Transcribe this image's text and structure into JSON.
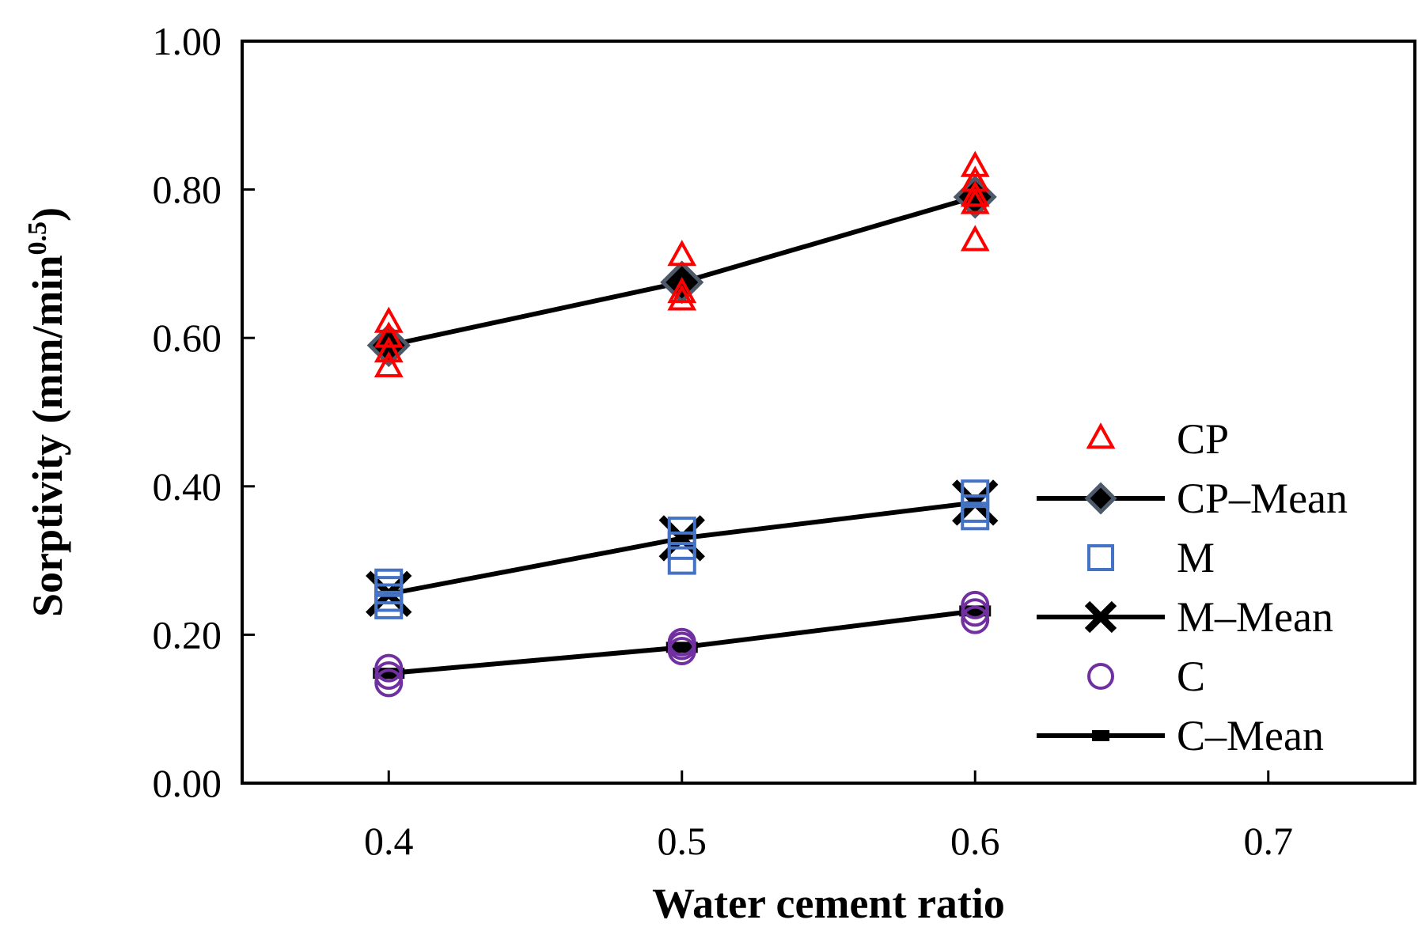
{
  "chart_data": {
    "type": "scatter",
    "title": "",
    "xlabel": "Water cement ratio",
    "ylabel_main": "Sorptivity (mm/min",
    "ylabel_sup": "0.5",
    "ylabel_close": ")",
    "xlim": [
      0.35,
      0.75
    ],
    "ylim": [
      0.0,
      1.0
    ],
    "xticks": [
      0.4,
      0.5,
      0.6,
      0.7
    ],
    "xtick_labels": [
      "0.4",
      "0.5",
      "0.6",
      "0.7"
    ],
    "yticks": [
      0.0,
      0.2,
      0.4,
      0.6,
      0.8,
      1.0
    ],
    "ytick_labels": [
      "0.00",
      "0.20",
      "0.40",
      "0.60",
      "0.80",
      "1.00"
    ],
    "grid": false,
    "legend_position": "right",
    "series": [
      {
        "name": "CP",
        "kind": "points",
        "marker": "triangle",
        "color": "#ff0000",
        "points": [
          [
            0.4,
            0.62
          ],
          [
            0.4,
            0.6
          ],
          [
            0.4,
            0.58
          ],
          [
            0.4,
            0.56
          ],
          [
            0.5,
            0.71
          ],
          [
            0.5,
            0.66
          ],
          [
            0.5,
            0.65
          ],
          [
            0.6,
            0.83
          ],
          [
            0.6,
            0.81
          ],
          [
            0.6,
            0.79
          ],
          [
            0.6,
            0.78
          ],
          [
            0.6,
            0.73
          ]
        ]
      },
      {
        "name": "CP–Mean",
        "kind": "line",
        "marker": "diamond",
        "color": "#000000",
        "edge": "#4d5a6a",
        "points": [
          [
            0.4,
            0.59
          ],
          [
            0.5,
            0.675
          ],
          [
            0.6,
            0.79
          ]
        ]
      },
      {
        "name": "M",
        "kind": "points",
        "marker": "square",
        "color": "#4472c4",
        "points": [
          [
            0.4,
            0.27
          ],
          [
            0.4,
            0.26
          ],
          [
            0.4,
            0.25
          ],
          [
            0.4,
            0.24
          ],
          [
            0.5,
            0.34
          ],
          [
            0.5,
            0.32
          ],
          [
            0.5,
            0.3
          ],
          [
            0.6,
            0.39
          ],
          [
            0.6,
            0.37
          ],
          [
            0.6,
            0.36
          ]
        ]
      },
      {
        "name": "M–Mean",
        "kind": "line",
        "marker": "x",
        "color": "#000000",
        "points": [
          [
            0.4,
            0.255
          ],
          [
            0.5,
            0.33
          ],
          [
            0.6,
            0.378
          ]
        ]
      },
      {
        "name": "C",
        "kind": "points",
        "marker": "circle",
        "color": "#7030a0",
        "points": [
          [
            0.4,
            0.155
          ],
          [
            0.4,
            0.145
          ],
          [
            0.4,
            0.135
          ],
          [
            0.5,
            0.19
          ],
          [
            0.5,
            0.185
          ],
          [
            0.5,
            0.178
          ],
          [
            0.6,
            0.24
          ],
          [
            0.6,
            0.23
          ],
          [
            0.6,
            0.22
          ]
        ]
      },
      {
        "name": "C–Mean",
        "kind": "line",
        "marker": "dash",
        "color": "#000000",
        "points": [
          [
            0.4,
            0.148
          ],
          [
            0.5,
            0.183
          ],
          [
            0.6,
            0.232
          ]
        ]
      }
    ]
  }
}
